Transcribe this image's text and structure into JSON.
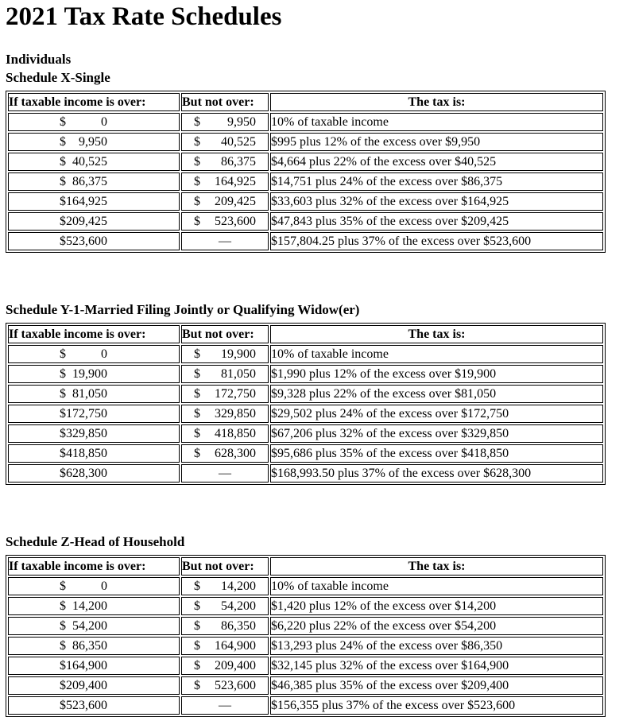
{
  "page": {
    "title": "2021 Tax Rate Schedules"
  },
  "currency_symbol": "$",
  "dash": "—",
  "sections": [
    {
      "pre_heading": "Individuals",
      "heading": "Schedule X-Single",
      "columns": [
        "If taxable income is over:",
        "But not over:",
        "The tax is:"
      ],
      "rows": [
        {
          "over": "0",
          "not_over": "9,950",
          "tax": "10% of taxable income"
        },
        {
          "over": "9,950",
          "not_over": "40,525",
          "tax": "$995 plus 12% of the excess over $9,950"
        },
        {
          "over": "40,525",
          "not_over": "86,375",
          "tax": "$4,664 plus 22% of the excess over $40,525"
        },
        {
          "over": "86,375",
          "not_over": "164,925",
          "tax": "$14,751 plus 24% of the excess over $86,375"
        },
        {
          "over": "164,925",
          "not_over": "209,425",
          "tax": "$33,603 plus 32% of the excess over $164,925"
        },
        {
          "over": "209,425",
          "not_over": "523,600",
          "tax": "$47,843 plus 35% of the excess over $209,425"
        },
        {
          "over": "523,600",
          "not_over": "—",
          "tax": "$157,804.25 plus 37% of the excess over $523,600"
        }
      ]
    },
    {
      "pre_heading": "",
      "heading": "Schedule Y-1-Married Filing Jointly or Qualifying Widow(er)",
      "columns": [
        "If taxable income is over:",
        "But not over:",
        "The tax is:"
      ],
      "rows": [
        {
          "over": "0",
          "not_over": "19,900",
          "tax": "10% of taxable income"
        },
        {
          "over": "19,900",
          "not_over": "81,050",
          "tax": "$1,990 plus 12% of the excess over $19,900"
        },
        {
          "over": "81,050",
          "not_over": "172,750",
          "tax": "$9,328 plus 22% of the excess over $81,050"
        },
        {
          "over": "172,750",
          "not_over": "329,850",
          "tax": "$29,502 plus 24% of the excess over $172,750"
        },
        {
          "over": "329,850",
          "not_over": "418,850",
          "tax": "$67,206 plus 32% of the excess over $329,850"
        },
        {
          "over": "418,850",
          "not_over": "628,300",
          "tax": "$95,686 plus 35% of the excess over $418,850"
        },
        {
          "over": "628,300",
          "not_over": "—",
          "tax": "$168,993.50 plus 37% of the excess over $628,300"
        }
      ]
    },
    {
      "pre_heading": "",
      "heading": "Schedule Z-Head of Household",
      "columns": [
        "If taxable income is over:",
        "But not over:",
        "The tax is:"
      ],
      "rows": [
        {
          "over": "0",
          "not_over": "14,200",
          "tax": "10% of taxable income"
        },
        {
          "over": "14,200",
          "not_over": "54,200",
          "tax": "$1,420 plus 12% of the excess over $14,200"
        },
        {
          "over": "54,200",
          "not_over": "86,350",
          "tax": "$6,220 plus 22% of the excess over $54,200"
        },
        {
          "over": "86,350",
          "not_over": "164,900",
          "tax": "$13,293 plus 24% of the excess over $86,350"
        },
        {
          "over": "164,900",
          "not_over": "209,400",
          "tax": "$32,145 plus 32% of the excess over $164,900"
        },
        {
          "over": "209,400",
          "not_over": "523,600",
          "tax": "$46,385 plus 35% of the excess over $209,400"
        },
        {
          "over": "523,600",
          "not_over": "—",
          "tax": "$156,355 plus 37% of the excess over $523,600"
        }
      ]
    }
  ]
}
